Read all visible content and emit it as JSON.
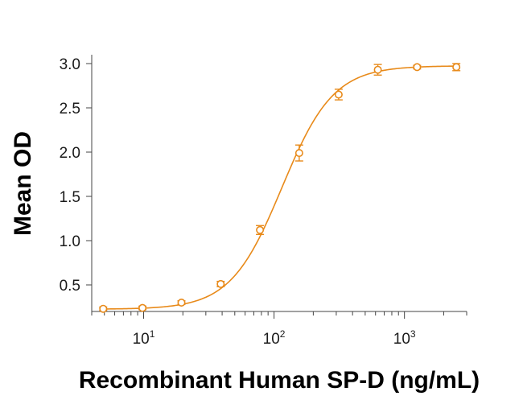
{
  "chart_data": {
    "type": "scatter",
    "xlabel": "Recombinant Human SP-D (ng/mL)",
    "ylabel": "Mean OD",
    "xscale": "log",
    "xlim": [
      4,
      3000
    ],
    "ylim": [
      0.2,
      3.1
    ],
    "x_ticks": [
      {
        "base": "10",
        "exp": "1",
        "value": 10
      },
      {
        "base": "10",
        "exp": "2",
        "value": 100
      },
      {
        "base": "10",
        "exp": "3",
        "value": 1000
      }
    ],
    "y_ticks": [
      "0.5",
      "1.0",
      "1.5",
      "2.0",
      "2.5",
      "3.0"
    ],
    "y_tick_values": [
      0.5,
      1.0,
      1.5,
      2.0,
      2.5,
      3.0
    ],
    "grid": false,
    "legend": "none",
    "series": [
      {
        "color": "#E88A1A",
        "x": [
          4.9,
          9.8,
          19.5,
          39,
          78,
          156,
          313,
          625,
          1250,
          2500
        ],
        "y": [
          0.23,
          0.24,
          0.3,
          0.51,
          1.12,
          1.99,
          2.65,
          2.93,
          2.96,
          2.96
        ],
        "error": [
          0.02,
          0.02,
          0.02,
          0.03,
          0.05,
          0.09,
          0.06,
          0.06,
          0.02,
          0.04
        ],
        "fit": "4PL"
      }
    ]
  }
}
